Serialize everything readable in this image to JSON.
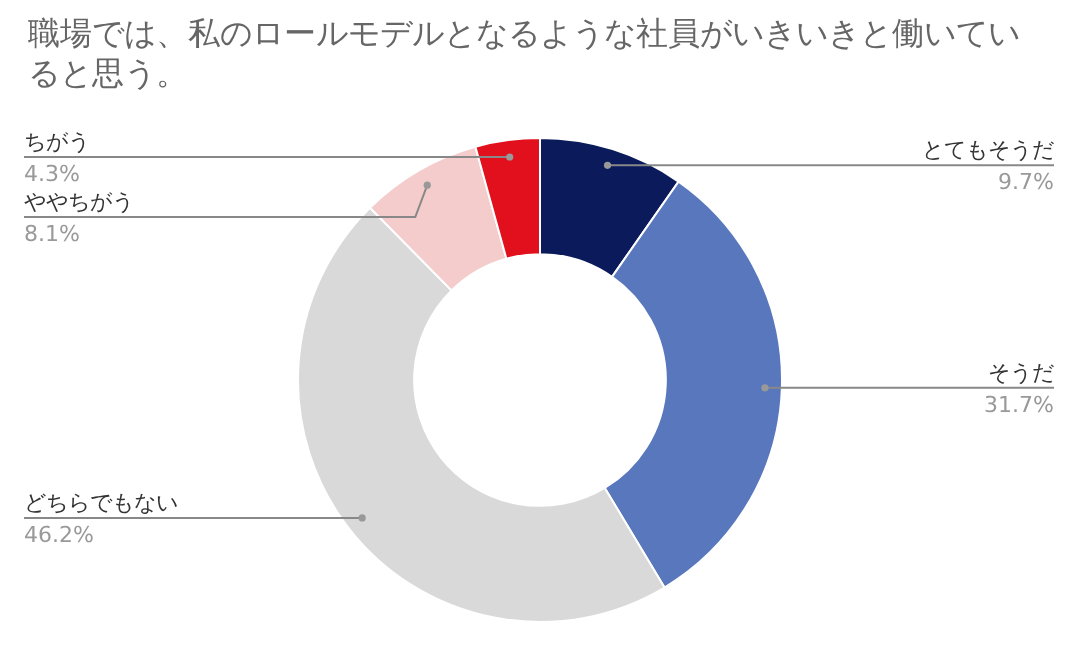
{
  "chart_data": {
    "type": "donut",
    "title": "職場では、私のロールモデルとなるような社員がいきいきと働いていると思う。",
    "categories": [
      "とてもそうだ",
      "そうだ",
      "どちらでもない",
      "ややちがう",
      "ちがう"
    ],
    "values": [
      9.7,
      31.7,
      46.2,
      8.1,
      4.3
    ],
    "colors": [
      "#0b1a5a",
      "#5877bd",
      "#d9d9d9",
      "#f4cccc",
      "#e2101d"
    ],
    "value_labels": [
      "9.7%",
      "31.7%",
      "46.2%",
      "8.1%",
      "4.3%"
    ]
  }
}
